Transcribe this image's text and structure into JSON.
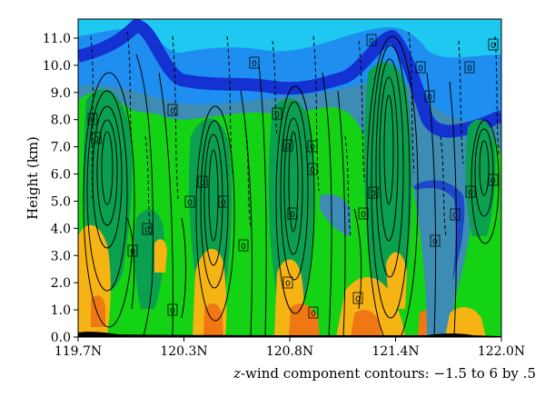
{
  "chart_data": {
    "type": "heatmap",
    "title": "",
    "xlabel": "",
    "ylabel": "Height (km)",
    "x_ticks": [
      "119.7N",
      "120.3N",
      "120.8N",
      "121.4N",
      "122.0N"
    ],
    "y_ticks": [
      "0.0",
      "1.0",
      "2.0",
      "3.0",
      "4.0",
      "5.0",
      "6.0",
      "7.0",
      "8.0",
      "9.0",
      "10.0",
      "11.0"
    ],
    "xlim": [
      119.7,
      122.0
    ],
    "ylim": [
      0.0,
      11.7
    ],
    "grid": false,
    "legend": "none",
    "colors": {
      "sky": "#1ec8f0",
      "mid_blue": "#1e8ff0",
      "band_blue": "#1432d2",
      "teal": "#3c8cb4",
      "green": "#14d214",
      "dark_green": "#0aa050",
      "orange": "#f5b414",
      "red_orange": "#f07814",
      "ground": "#000000"
    },
    "updraft_cores_km_range": [
      {
        "lat": 119.85,
        "zmin": 0.0,
        "zmax": 8.0
      },
      {
        "lat": 120.45,
        "zmin": 0.0,
        "zmax": 7.5
      },
      {
        "lat": 120.9,
        "zmin": 0.0,
        "zmax": 8.0
      },
      {
        "lat": 121.45,
        "zmin": 0.0,
        "zmax": 10.0
      },
      {
        "lat": 121.95,
        "zmin": 2.0,
        "zmax": 7.0
      }
    ],
    "contour_labels": [
      "0",
      "0",
      "0",
      "0",
      "0",
      "0",
      "0",
      "0",
      "0",
      "0",
      "0",
      "0",
      "0",
      "0",
      "0",
      "0",
      "0",
      "0",
      "0",
      "0",
      "0",
      "0",
      "0",
      "0",
      "0",
      "0",
      "0",
      "0",
      "0",
      "0"
    ]
  },
  "caption": {
    "variable": "z",
    "rest": "-wind component contours: −1.5 to 6 by .5"
  }
}
